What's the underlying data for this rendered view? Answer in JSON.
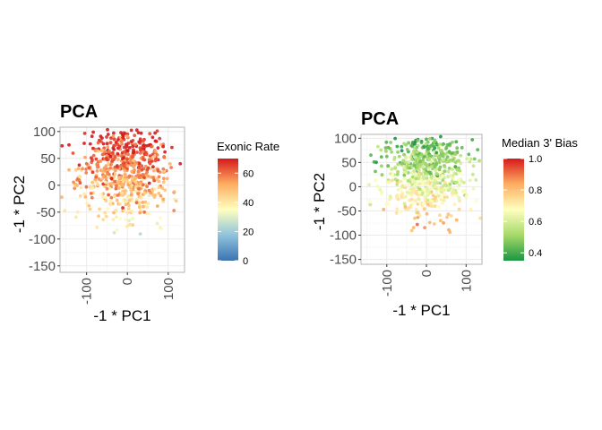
{
  "chart_data": [
    {
      "type": "scatter",
      "title": "PCA",
      "xlabel": "-1 * PC1",
      "ylabel": "-1 * PC2",
      "xlim": [
        -165,
        140
      ],
      "ylim": [
        -162,
        108
      ],
      "x_ticks": [
        -100,
        0,
        100
      ],
      "x_tick_labels": [
        "-100",
        "0",
        "100"
      ],
      "y_ticks": [
        100,
        50,
        0,
        -50,
        -100,
        -150
      ],
      "y_tick_labels": [
        "100",
        "50",
        "0",
        "-50",
        "-100",
        "-150"
      ],
      "grid": true,
      "legend": {
        "title": "Exonic Rate",
        "placement": "right",
        "range": [
          0,
          70
        ],
        "ticks": [
          0,
          20,
          40,
          60
        ],
        "tick_labels": [
          "0",
          "20",
          "40",
          "60"
        ],
        "palette": "RdYlBu (reversed)",
        "colors": [
          "#3b73b3",
          "#8fc3dc",
          "#ffffbf",
          "#fdae61",
          "#d7191c"
        ]
      },
      "points": {
        "count": 700,
        "seed": 11,
        "center": [
          -5,
          30
        ],
        "spread": [
          55,
          45
        ],
        "color_variable": "Exonic Rate",
        "color_trend": "high (orange/red) at top, low (pale blue) toward bottom"
      }
    },
    {
      "type": "scatter",
      "title": "PCA",
      "xlabel": "-1 * PC1",
      "ylabel": "-1 * PC2",
      "xlim": [
        -165,
        140
      ],
      "ylim": [
        -160,
        108
      ],
      "x_ticks": [
        -100,
        0,
        100
      ],
      "x_tick_labels": [
        "-100",
        "0",
        "100"
      ],
      "y_ticks": [
        100,
        50,
        0,
        -50,
        -100,
        -150
      ],
      "y_tick_labels": [
        "100",
        "50",
        "0",
        "-50",
        "-100",
        "-150"
      ],
      "grid": true,
      "legend": {
        "title": "Median 3' Bias",
        "placement": "right",
        "range": [
          0.35,
          1.0
        ],
        "ticks": [
          0.4,
          0.6,
          0.8,
          1.0
        ],
        "tick_labels": [
          "0.4",
          "0.6",
          "0.8",
          "1.0"
        ],
        "palette": "RdYlGn (reversed)",
        "colors": [
          "#1a9641",
          "#a6d96a",
          "#ffffbf",
          "#fdae61",
          "#d7191c"
        ]
      },
      "points": {
        "count": 700,
        "seed": 23,
        "center": [
          -5,
          30
        ],
        "spread": [
          55,
          45
        ],
        "color_variable": "Median 3' Bias",
        "color_trend": "low (green) at top, high (orange/red) toward bottom"
      }
    }
  ]
}
